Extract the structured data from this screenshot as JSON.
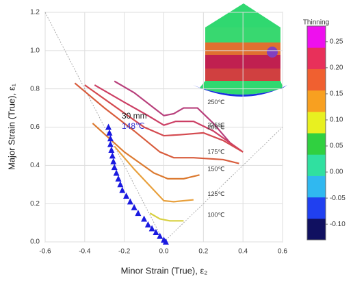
{
  "chart_data": {
    "type": "line",
    "xlabel": "Minor Strain (True), ε₂",
    "ylabel": "Major Strain (True), ε₁",
    "xlim": [
      -0.6,
      0.6
    ],
    "ylim": [
      0,
      1.2
    ],
    "xticks": [
      -0.6,
      -0.4,
      -0.2,
      {
        "value": 0,
        "label": "0.0"
      },
      0.2,
      0.4,
      0.6
    ],
    "yticks": [
      {
        "value": 0,
        "label": "0.0"
      },
      0.2,
      0.4,
      0.6,
      0.8,
      {
        "value": 1,
        "label": "1.0"
      },
      1.2
    ],
    "grid": true,
    "series": [
      {
        "name": "250℃",
        "color": "#b8407c",
        "x": [
          -0.25,
          -0.15,
          -0.05,
          0.0,
          0.05,
          0.1,
          0.17,
          0.25,
          0.35
        ],
        "values": [
          0.84,
          0.78,
          0.7,
          0.66,
          0.67,
          0.7,
          0.7,
          0.62,
          0.5
        ]
      },
      {
        "name": "225℃",
        "color": "#cc3f64",
        "x": [
          -0.35,
          -0.2,
          -0.08,
          0.0,
          0.06,
          0.15,
          0.25,
          0.4
        ],
        "values": [
          0.82,
          0.73,
          0.66,
          0.61,
          0.63,
          0.63,
          0.58,
          0.47
        ]
      },
      {
        "name": "200℃",
        "color": "#d44a50",
        "x": [
          -0.4,
          -0.25,
          -0.1,
          0.0,
          0.08,
          0.2,
          0.3,
          0.4
        ],
        "values": [
          0.82,
          0.71,
          0.6,
          0.555,
          0.56,
          0.57,
          0.53,
          0.47
        ]
      },
      {
        "name": "175℃",
        "color": "#d85c3c",
        "x": [
          -0.45,
          -0.3,
          -0.15,
          -0.02,
          0.05,
          0.15,
          0.3,
          0.38
        ],
        "values": [
          0.83,
          0.7,
          0.58,
          0.47,
          0.44,
          0.44,
          0.43,
          0.41
        ]
      },
      {
        "name": "150℃",
        "color": "#dc7a30",
        "x": [
          -0.36,
          -0.2,
          -0.05,
          0.02,
          0.1,
          0.18
        ],
        "values": [
          0.62,
          0.47,
          0.36,
          0.33,
          0.33,
          0.35
        ]
      },
      {
        "name": "125℃",
        "color": "#e8a03c",
        "x": [
          -0.25,
          -0.15,
          -0.05,
          0.0,
          0.05,
          0.15
        ],
        "values": [
          0.5,
          0.38,
          0.27,
          0.215,
          0.21,
          0.22
        ]
      },
      {
        "name": "100℃",
        "color": "#d8d040",
        "x": [
          -0.07,
          -0.02,
          0.03,
          0.1
        ],
        "values": [
          0.15,
          0.12,
          0.11,
          0.11
        ]
      }
    ],
    "markers": {
      "type": "scatter",
      "color": "#1a1ae0",
      "x": [
        -0.28,
        -0.275,
        -0.27,
        -0.27,
        -0.265,
        -0.26,
        -0.255,
        -0.25,
        -0.24,
        -0.23,
        -0.22,
        -0.21,
        -0.19,
        -0.17,
        -0.15,
        -0.13,
        -0.1,
        -0.08,
        -0.06,
        -0.04,
        -0.02,
        0.0,
        0.01
      ],
      "values": [
        0.6,
        0.57,
        0.54,
        0.51,
        0.48,
        0.45,
        0.42,
        0.39,
        0.36,
        0.33,
        0.3,
        0.27,
        0.24,
        0.21,
        0.18,
        0.15,
        0.12,
        0.09,
        0.07,
        0.05,
        0.03,
        0.01,
        0.0
      ]
    },
    "annotations": [
      {
        "text": "30 mm",
        "color": "#222222"
      },
      {
        "text": "148℃",
        "color": "#2a2ad0"
      }
    ],
    "colorbar": {
      "title": "Thinning",
      "clim": [
        -0.13,
        0.28
      ],
      "colors": [
        "#101060",
        "#2040f0",
        "#30b8f0",
        "#30e0a0",
        "#30d040",
        "#e8f020",
        "#f8a020",
        "#f06030",
        "#e8305a",
        "#ee10ee"
      ],
      "ticks": [
        0.25,
        {
          "value": 0.2,
          "label": "0.20"
        },
        0.15,
        {
          "value": 0.1,
          "label": "0.10"
        },
        0.05,
        {
          "value": 0,
          "label": "0.00"
        },
        -0.05,
        {
          "value": -0.1,
          "label": "-0.10"
        }
      ]
    }
  }
}
